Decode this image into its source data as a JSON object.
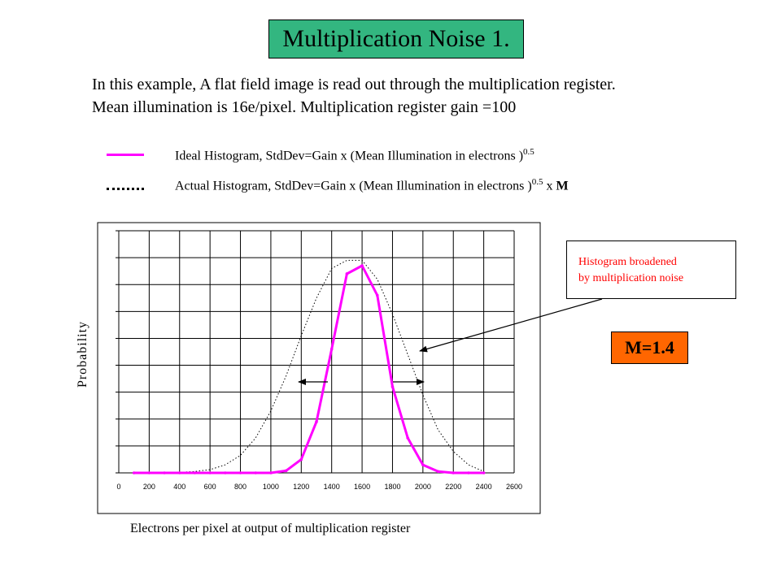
{
  "title": "Multiplication Noise 1.",
  "intro": {
    "line1": "In this example, A flat field image is read out through the multiplication register.",
    "line2": "Mean illumination is 16e/pixel. Multiplication register gain =100"
  },
  "legend": {
    "ideal_text": "Ideal Histogram, StdDev=Gain x (Mean Illumination in electrons )",
    "ideal_exp": "0.5",
    "actual_text": "Actual Histogram, StdDev=Gain x (Mean Illumination in electrons )",
    "actual_exp": "0.5",
    "actual_suffix": " x ",
    "actual_m": "M"
  },
  "callout": {
    "line1": "Histogram broadened",
    "line2": "by multiplication noise"
  },
  "m_badge": "M=1.4",
  "colors": {
    "title_bg": "#33b680",
    "ideal_line": "#ff00ff",
    "badge_bg": "#ff6600",
    "callout_text": "#ff0000"
  },
  "chart_data": {
    "type": "line",
    "xlabel": "Electrons per pixel at output of multiplication register",
    "ylabel": "Probability",
    "xlim": [
      0,
      2600
    ],
    "ylim": [
      0,
      9
    ],
    "grid": true,
    "x_ticks": [
      "0",
      "200",
      "400",
      "600",
      "800",
      "1000",
      "1200",
      "1400",
      "1600",
      "1800",
      "2000",
      "2200",
      "2400",
      "2600"
    ],
    "x": [
      100,
      200,
      300,
      400,
      500,
      600,
      700,
      800,
      900,
      1000,
      1100,
      1200,
      1300,
      1400,
      1500,
      1600,
      1700,
      1800,
      1900,
      2000,
      2100,
      2200,
      2300,
      2400
    ],
    "series": [
      {
        "name": "Ideal Histogram",
        "style": "solid",
        "values": [
          0,
          0,
          0,
          0,
          0,
          0,
          0,
          0,
          0,
          0,
          0.08,
          0.5,
          1.9,
          4.6,
          7.4,
          7.7,
          6.6,
          3.2,
          1.3,
          0.3,
          0.05,
          0,
          0,
          0
        ]
      },
      {
        "name": "Actual Histogram",
        "style": "dotted",
        "values": [
          0,
          0,
          0,
          0.02,
          0.05,
          0.12,
          0.3,
          0.65,
          1.3,
          2.3,
          3.6,
          5.1,
          6.5,
          7.6,
          7.9,
          7.9,
          7.2,
          5.9,
          4.4,
          2.9,
          1.6,
          0.8,
          0.3,
          0.05
        ]
      }
    ]
  }
}
